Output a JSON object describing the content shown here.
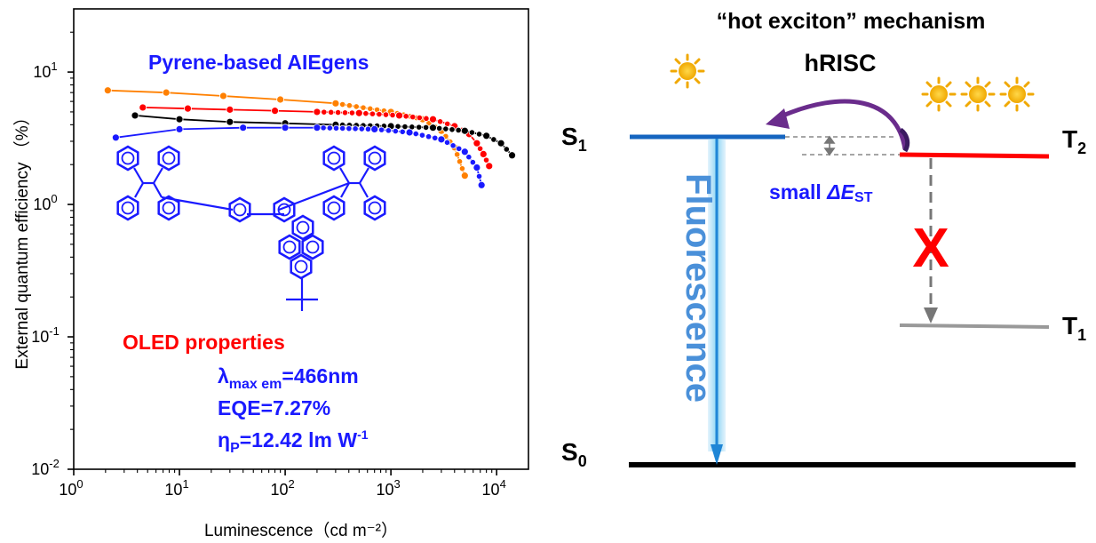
{
  "chart_data": {
    "type": "scatter",
    "xscale": "log",
    "yscale": "log",
    "xlim": [
      1,
      20000
    ],
    "ylim": [
      0.01,
      30
    ],
    "xlabel": "Luminescence（cd m⁻²）",
    "ylabel": "External quantum efficiency （%）",
    "grid": false,
    "xticks": [
      {
        "value": 1,
        "base": "10",
        "exp": "0"
      },
      {
        "value": 10,
        "base": "10",
        "exp": "1"
      },
      {
        "value": 100,
        "base": "10",
        "exp": "2"
      },
      {
        "value": 1000,
        "base": "10",
        "exp": "3"
      },
      {
        "value": 10000,
        "base": "10",
        "exp": "4"
      }
    ],
    "yticks": [
      {
        "value": 0.01,
        "base": "10",
        "exp": "-2"
      },
      {
        "value": 0.1,
        "base": "10",
        "exp": "-1"
      },
      {
        "value": 1,
        "base": "10",
        "exp": "0"
      },
      {
        "value": 10,
        "base": "10",
        "exp": "1"
      }
    ],
    "series": [
      {
        "color": "#ff8000",
        "x": [
          2.1,
          7.5,
          26,
          90,
          300,
          1000,
          2000,
          3000,
          4000,
          5000
        ],
        "y": [
          7.27,
          7.0,
          6.6,
          6.2,
          5.8,
          5.0,
          4.4,
          3.6,
          2.7,
          1.65
        ]
      },
      {
        "color": "#ff0000",
        "x": [
          4.5,
          12,
          30,
          80,
          200,
          500,
          1200,
          2500,
          4000,
          5500,
          6500,
          7500,
          8500
        ],
        "y": [
          5.4,
          5.3,
          5.2,
          5.1,
          5.0,
          4.9,
          4.7,
          4.4,
          3.9,
          3.4,
          2.9,
          2.4,
          1.95
        ]
      },
      {
        "color": "#000000",
        "x": [
          3.8,
          10,
          30,
          100,
          300,
          1000,
          2500,
          5000,
          8000,
          11000,
          14000
        ],
        "y": [
          4.7,
          4.4,
          4.2,
          4.1,
          4.0,
          3.9,
          3.8,
          3.6,
          3.3,
          2.9,
          2.35
        ]
      },
      {
        "color": "#1a1aff",
        "x": [
          2.5,
          10,
          40,
          100,
          200,
          700,
          1500,
          3000,
          5000,
          6500,
          7200
        ],
        "y": [
          3.2,
          3.7,
          3.8,
          3.8,
          3.8,
          3.7,
          3.5,
          3.1,
          2.5,
          1.9,
          1.4
        ]
      }
    ]
  },
  "annotations": {
    "compound_class": "Pyrene-based AIEgens",
    "oled_heading": "OLED properties",
    "lambda_symbol": "λ",
    "lambda_sub": "max em",
    "lambda_value": "=466nm",
    "eqe": "EQE=7.27%",
    "eta_symbol": "η",
    "eta_sub": "P",
    "eta_value": "=12.42 lm W",
    "eta_sup": "-1"
  },
  "diagram": {
    "title": "“hot exciton” mechanism",
    "hrisc": "hRISC",
    "s1": {
      "letter": "S",
      "sub": "1"
    },
    "s0": {
      "letter": "S",
      "sub": "0"
    },
    "t2": {
      "letter": "T",
      "sub": "2"
    },
    "t1": {
      "letter": "T",
      "sub": "1"
    },
    "fluorescence": "Fluorescence",
    "small_prefix": "small ",
    "delta_e": "ΔE",
    "delta_sub": "ST",
    "blocked_mark": "X",
    "colors": {
      "s1_level": "#1565c0",
      "t2_level": "#ff0000",
      "t1_level": "#999999",
      "s0_level": "#000000",
      "arrow": "#6a2c8c",
      "text_blue": "#1a1aff",
      "text_red": "#ff0000",
      "sun": "#f5b800"
    }
  }
}
